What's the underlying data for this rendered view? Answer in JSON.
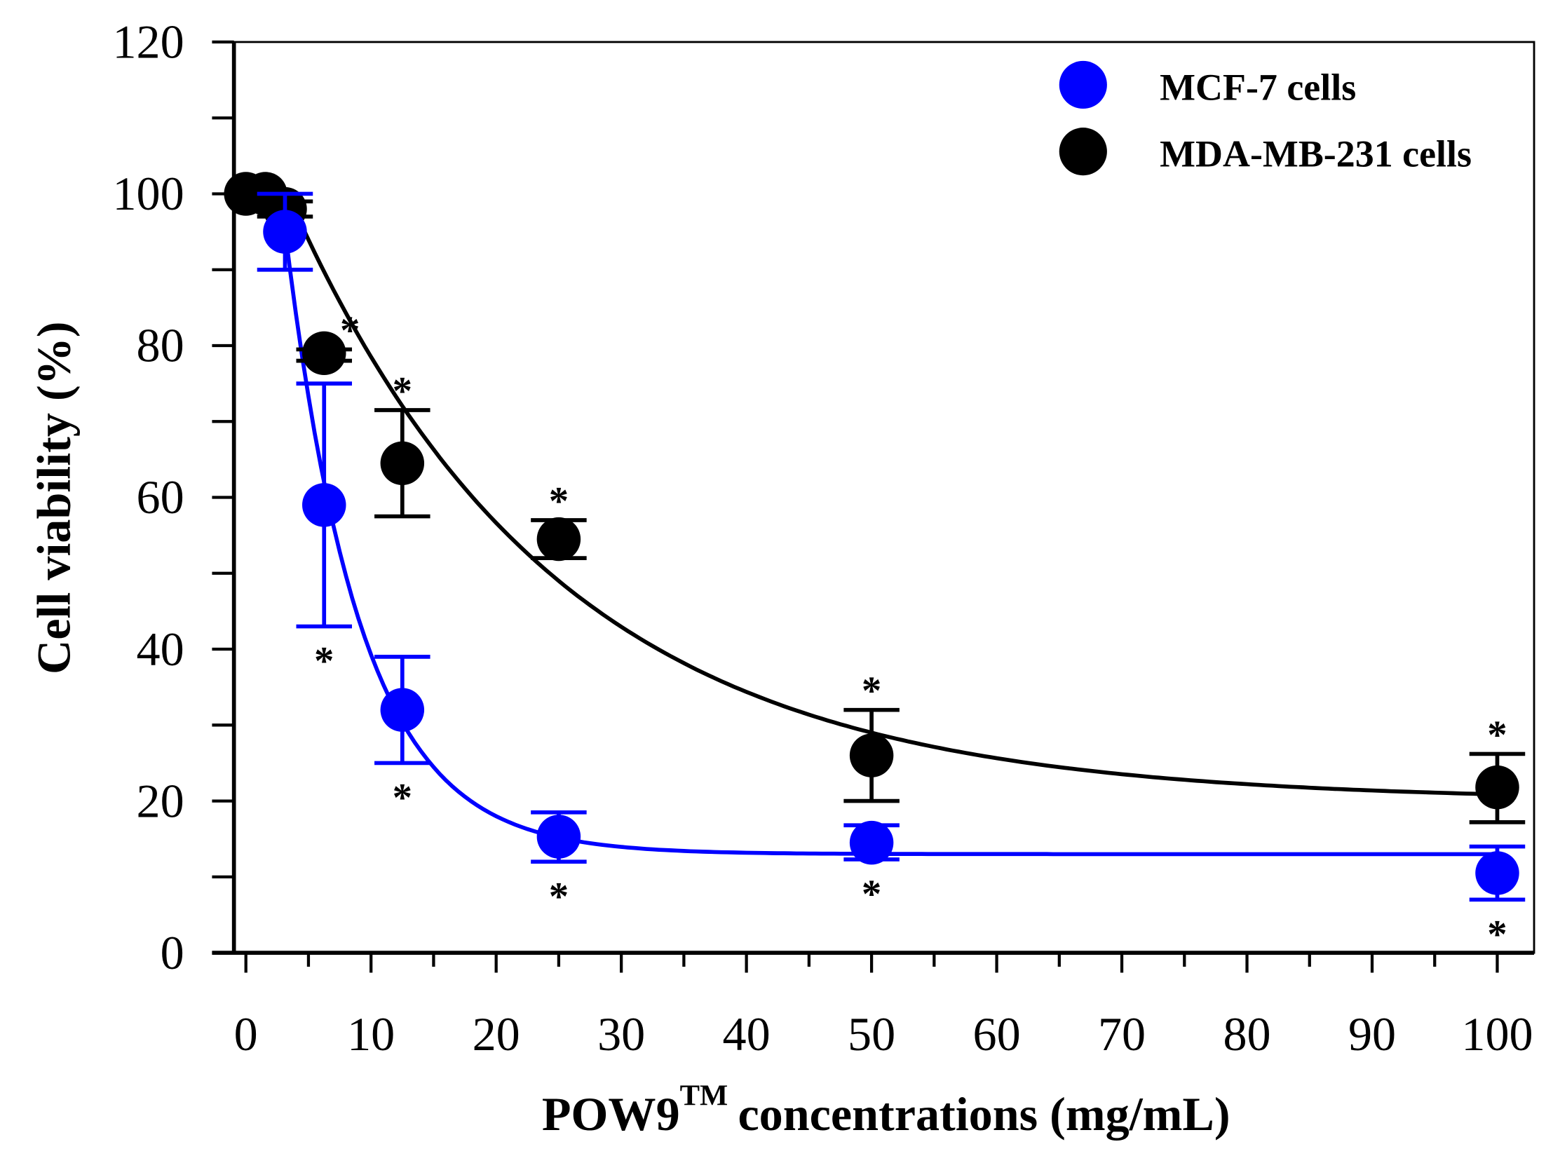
{
  "chart_data": {
    "type": "scatter",
    "title": "",
    "xlabel": "POW9",
    "xlabel_superscript": "TM",
    "xlabel_suffix": "concentrations (mg/mL)",
    "ylabel": "Cell viability (%)",
    "xlim": [
      -1,
      103
    ],
    "ylim": [
      0,
      120
    ],
    "xticks": [
      0,
      10,
      20,
      30,
      40,
      50,
      60,
      70,
      80,
      90,
      100
    ],
    "yticks": [
      0,
      20,
      40,
      60,
      80,
      100,
      120
    ],
    "grid": false,
    "legend_position": "top-right",
    "series": [
      {
        "name": "MCF-7 cells",
        "color": "#0000ff",
        "x": [
          3.125,
          6.25,
          12.5,
          25,
          50,
          100
        ],
        "y": [
          95,
          59,
          32,
          15.3,
          14.5,
          10.5
        ],
        "err_low": [
          90,
          43,
          25,
          12,
          12.3,
          7
        ],
        "err_high": [
          100,
          75,
          39,
          18.5,
          16.8,
          14
        ],
        "significant": [
          false,
          true,
          true,
          true,
          true,
          true
        ],
        "fit": {
          "model": "exponential decay",
          "y0": 13,
          "a": 84,
          "k": 0.166,
          "x0": 3
        }
      },
      {
        "name": "MDA-MB-231 cells",
        "color": "#000000",
        "x": [
          0,
          1.56,
          3.125,
          6.25,
          12.5,
          25,
          50,
          100
        ],
        "y": [
          100,
          100,
          98,
          79,
          64.5,
          54.5,
          26,
          21.8
        ],
        "err_low": [
          100,
          100,
          97,
          78,
          57.5,
          52,
          20,
          17.2
        ],
        "err_high": [
          100,
          100,
          99,
          79.5,
          71.5,
          57,
          32,
          26.2
        ],
        "significant": [
          false,
          false,
          false,
          true,
          true,
          true,
          true,
          true
        ],
        "fit": {
          "model": "exponential decay",
          "y0": 20,
          "a": 29,
          "k": 0.0468,
          "x0": 25
        }
      }
    ],
    "annotation_symbol": "*"
  }
}
